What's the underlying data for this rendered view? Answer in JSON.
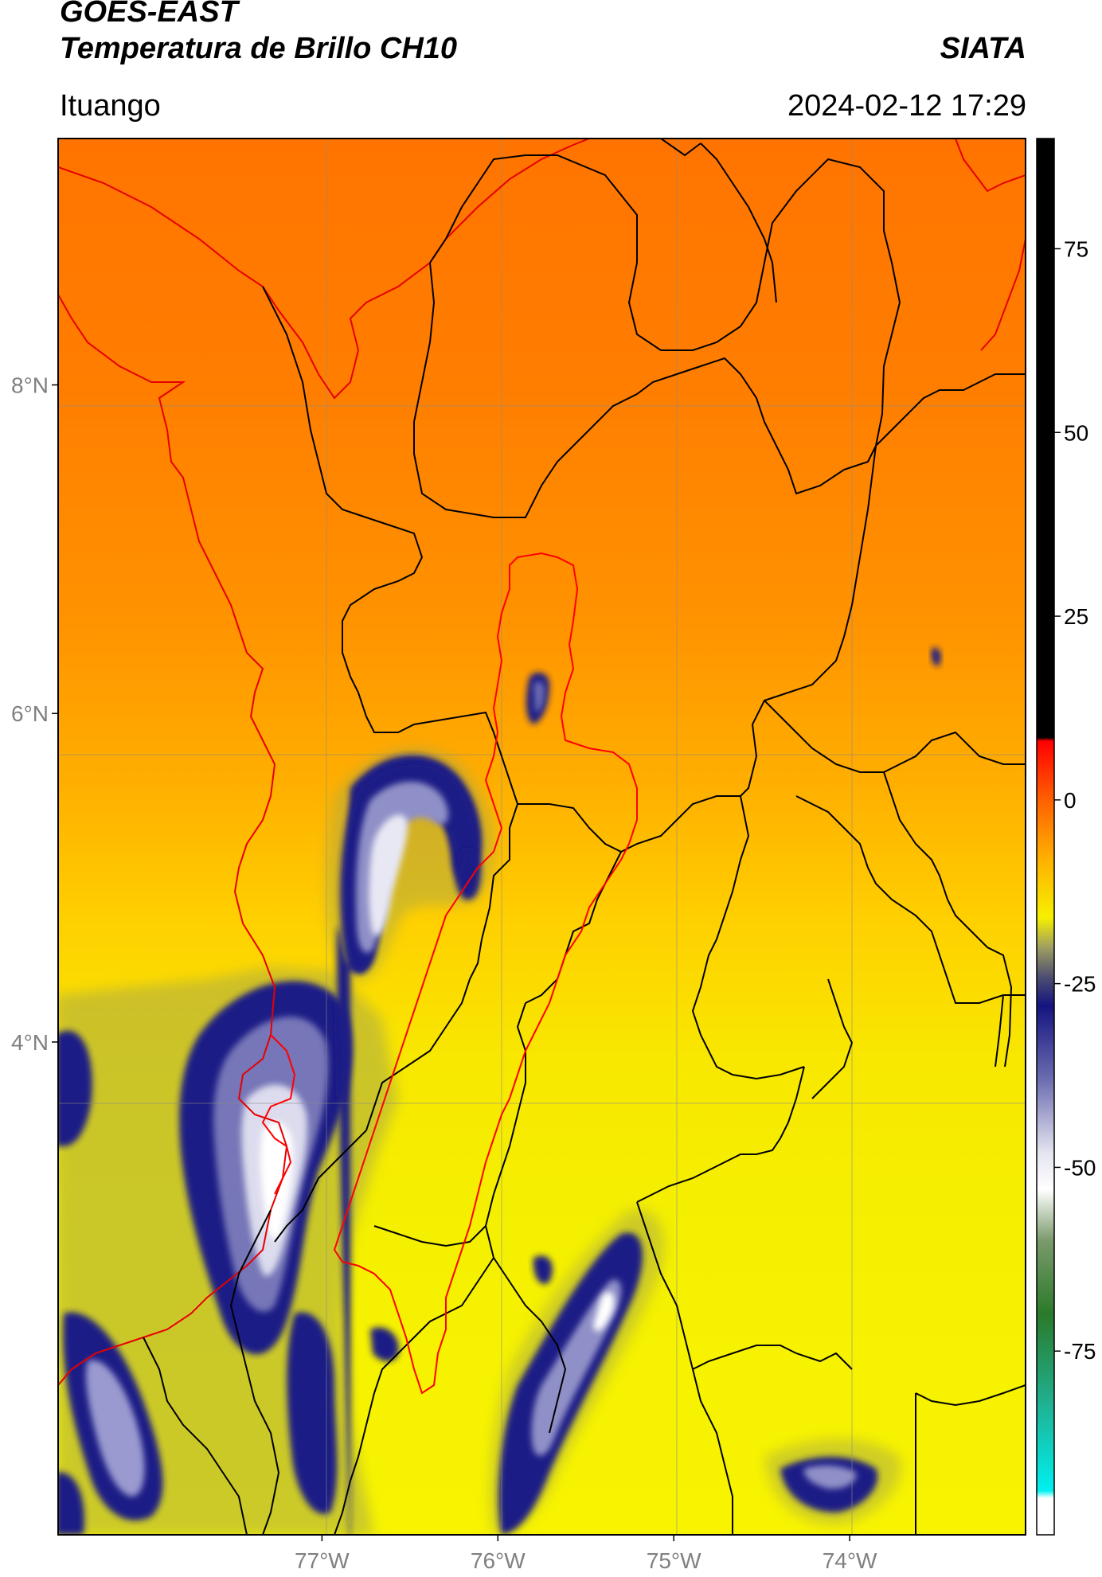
{
  "header": {
    "satellite": "GOES-EAST",
    "product": "Temperatura de Brillo CH10",
    "brand": "SIATA",
    "region": "Ituango",
    "datetime": "2024-02-12 17:29"
  },
  "map": {
    "lon_range": [
      -78.5,
      -73.0
    ],
    "lat_range": [
      1.0,
      9.5
    ],
    "lat_ticks": [
      {
        "value": 8,
        "label": "8°N"
      },
      {
        "value": 6,
        "label": "6°N"
      },
      {
        "value": 4,
        "label": "4°N"
      }
    ],
    "lon_ticks": [
      {
        "value": -77,
        "label": "77°W"
      },
      {
        "value": -76,
        "label": "76°W"
      },
      {
        "value": -75,
        "label": "75°W"
      },
      {
        "value": -74,
        "label": "74°W"
      }
    ],
    "gridlines": true,
    "colors": {
      "warm_orange": "#ff7a00",
      "mid_orange": "#ffa000",
      "yellow": "#f6f000",
      "navy": "#1a1a86",
      "lavender": "#b4b4dc",
      "white": "#ffffff",
      "border_black": "#000000",
      "basin_red": "#ff0000"
    }
  },
  "colorbar": {
    "range": [
      -100,
      90
    ],
    "ticks": [
      {
        "value": 75,
        "label": "75"
      },
      {
        "value": 50,
        "label": "50"
      },
      {
        "value": 25,
        "label": "25"
      },
      {
        "value": 0,
        "label": "0"
      },
      {
        "value": -25,
        "label": "-25"
      },
      {
        "value": -50,
        "label": "-50"
      },
      {
        "value": -75,
        "label": "-75"
      }
    ],
    "stops": [
      {
        "value": 90,
        "color": "#000000"
      },
      {
        "value": 8.5,
        "color": "#000000"
      },
      {
        "value": 8,
        "color": "#ff0000"
      },
      {
        "value": 0,
        "color": "#ff6000"
      },
      {
        "value": -8,
        "color": "#ffb000"
      },
      {
        "value": -16,
        "color": "#f6f000"
      },
      {
        "value": -20,
        "color": "#a0a060"
      },
      {
        "value": -24,
        "color": "#505070"
      },
      {
        "value": -28,
        "color": "#141480"
      },
      {
        "value": -38,
        "color": "#6c6cb0"
      },
      {
        "value": -48,
        "color": "#e4e4f0"
      },
      {
        "value": -53,
        "color": "#ffffff"
      },
      {
        "value": -60,
        "color": "#7a9a6a"
      },
      {
        "value": -70,
        "color": "#2a7a2a"
      },
      {
        "value": -82,
        "color": "#20b090"
      },
      {
        "value": -94,
        "color": "#00f0f0"
      },
      {
        "value": -95,
        "color": "#ffffff"
      },
      {
        "value": -100,
        "color": "#ffffff"
      }
    ]
  }
}
